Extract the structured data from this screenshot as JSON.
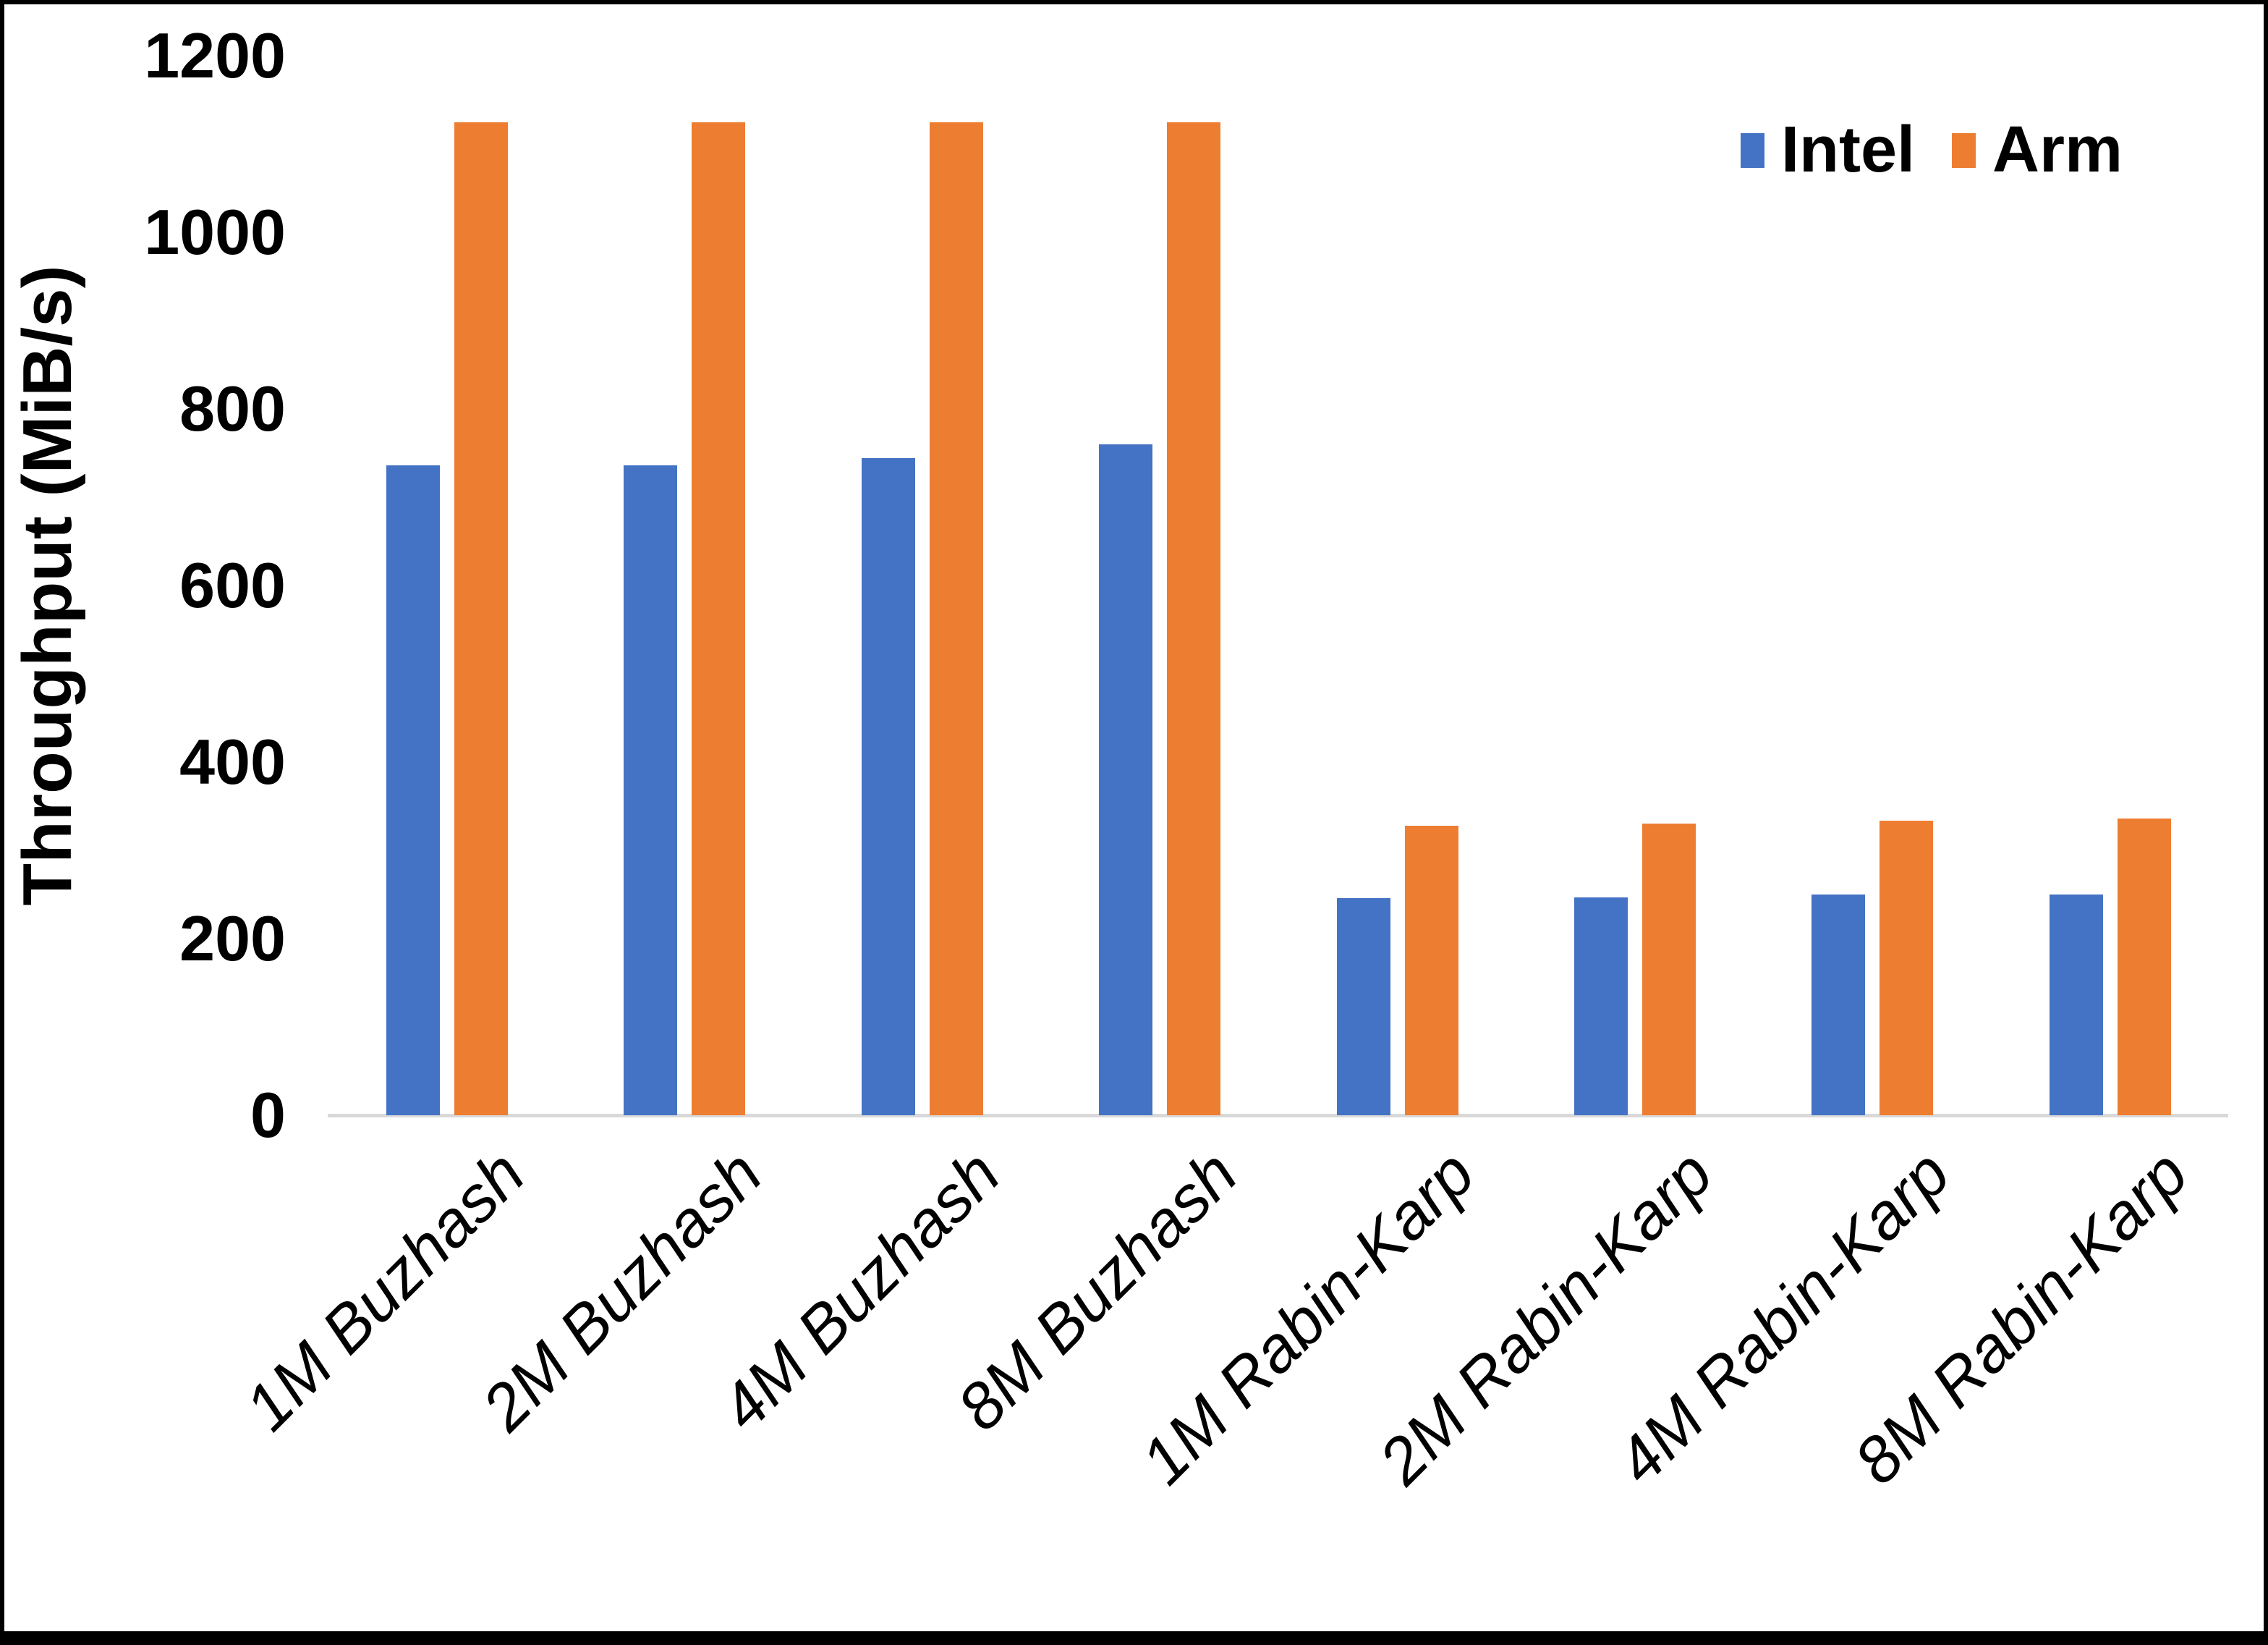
{
  "chart_data": {
    "type": "bar",
    "title": "",
    "ylabel": "Throughput (MiB/s)",
    "xlabel": "",
    "ylim": [
      0,
      1200
    ],
    "yticks": [
      0,
      200,
      400,
      600,
      800,
      1000,
      1200
    ],
    "grid": false,
    "legend_position": "top-right",
    "categories": [
      "1M Buzhash",
      "2M Buzhash",
      "4M Buzhash",
      "8M Buzhash",
      "1M Rabin-Karp",
      "2M Rabin-Karp",
      "4M Rabin-Karp",
      "8M Rabin-Karp"
    ],
    "series": [
      {
        "name": "Intel",
        "color": "#4472C4",
        "values": [
          736,
          736,
          744,
          760,
          246,
          247,
          250,
          250
        ]
      },
      {
        "name": "Arm",
        "color": "#ED7D31",
        "values": [
          1125,
          1125,
          1125,
          1125,
          328,
          330,
          334,
          336
        ]
      }
    ],
    "axis_line_color": "#D9D9D9",
    "text_color": "#000000",
    "frame_color": "#000000"
  }
}
